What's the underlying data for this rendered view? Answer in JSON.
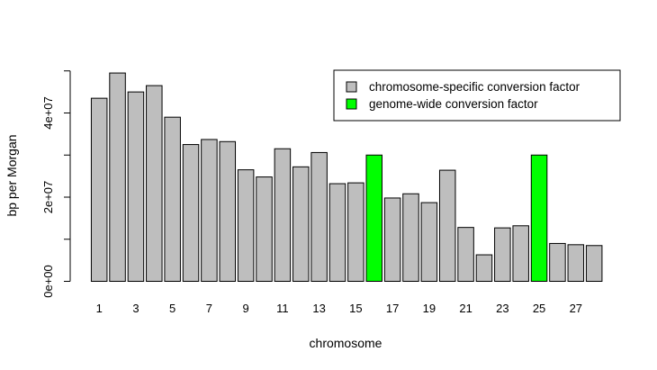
{
  "chart_data": {
    "type": "bar",
    "xlabel": "chromosome",
    "ylabel": "bp per Morgan",
    "ylim": [
      0,
      50000000
    ],
    "y_tick_values": [
      0,
      20000000,
      40000000
    ],
    "y_tick_labels": [
      "0e+00",
      "2e+07",
      "4e+07"
    ],
    "y_minor_ticks": [
      10000000,
      30000000,
      50000000
    ],
    "x_tick_labels": [
      "1",
      "3",
      "5",
      "7",
      "9",
      "11",
      "13",
      "15",
      "17",
      "19",
      "21",
      "23",
      "25",
      "27"
    ],
    "x_tick_label_categories": [
      1,
      3,
      5,
      7,
      9,
      11,
      13,
      15,
      17,
      19,
      21,
      23,
      25,
      27
    ],
    "categories": [
      1,
      2,
      3,
      4,
      5,
      6,
      7,
      8,
      9,
      10,
      11,
      12,
      13,
      14,
      15,
      16,
      17,
      18,
      19,
      20,
      21,
      22,
      23,
      24,
      25,
      26,
      27,
      28
    ],
    "values": [
      43500000,
      49500000,
      45000000,
      46500000,
      39000000,
      32500000,
      33700000,
      33200000,
      26500000,
      24800000,
      31500000,
      27200000,
      30600000,
      23200000,
      23400000,
      30000000,
      19800000,
      20800000,
      18700000,
      26400000,
      12800000,
      6300000,
      12700000,
      13200000,
      30000000,
      9000000,
      8700000,
      8500000
    ],
    "bar_types": [
      "s",
      "s",
      "s",
      "s",
      "s",
      "s",
      "s",
      "s",
      "s",
      "s",
      "s",
      "s",
      "s",
      "s",
      "s",
      "g",
      "s",
      "s",
      "s",
      "s",
      "s",
      "s",
      "s",
      "s",
      "g",
      "s",
      "s",
      "s"
    ],
    "legend": {
      "placement": "top-right",
      "entries": [
        {
          "key": "s",
          "label": "chromosome-specific conversion factor",
          "color": "#bebebe"
        },
        {
          "key": "g",
          "label": "genome-wide conversion factor",
          "color": "#00ff00"
        }
      ]
    },
    "grid": false
  }
}
